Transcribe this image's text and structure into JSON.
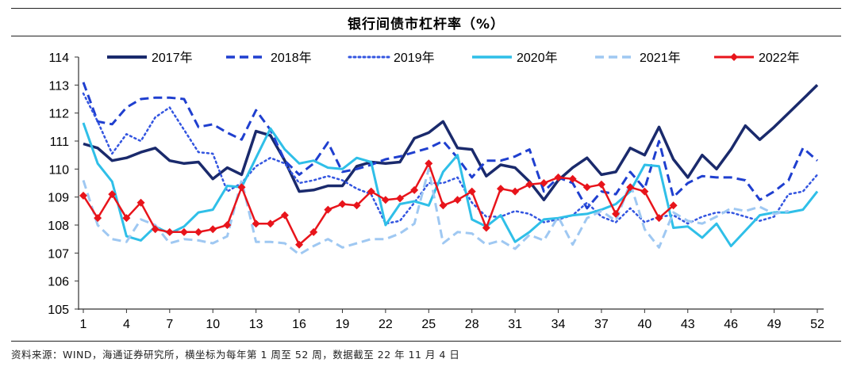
{
  "title": "银行间债市杠杆率（%）",
  "source": "资料来源：WIND，海通证券研究所，横坐标为每年第 1 周至 52 周，数据截至 22 年 11 月 4 日",
  "chart_data": {
    "type": "line",
    "title": "银行间债市杠杆率（%）",
    "xlabel": "",
    "ylabel": "",
    "xlim": [
      1,
      52
    ],
    "ylim": [
      105,
      114
    ],
    "xticks": [
      1,
      4,
      7,
      10,
      13,
      16,
      19,
      22,
      25,
      28,
      31,
      34,
      37,
      40,
      43,
      46,
      49,
      52
    ],
    "yticks": [
      105,
      106,
      107,
      108,
      109,
      110,
      111,
      112,
      113,
      114
    ],
    "legend_position": "top",
    "series": [
      {
        "name": "2017年",
        "color": "#1a2a6c",
        "style": "solid",
        "width": 3.5,
        "values": [
          110.9,
          110.75,
          110.3,
          110.4,
          110.6,
          110.75,
          110.3,
          110.2,
          110.25,
          109.65,
          110.05,
          109.8,
          111.35,
          111.2,
          110.3,
          109.2,
          109.25,
          109.4,
          109.4,
          110.1,
          110.25,
          110.2,
          110.25,
          111.1,
          111.3,
          111.7,
          110.75,
          110.7,
          109.75,
          110.15,
          110.05,
          109.55,
          108.9,
          109.6,
          110.05,
          110.4,
          109.8,
          109.9,
          110.75,
          110.5,
          111.5,
          110.35,
          109.7,
          110.5,
          110.0,
          110.7,
          111.55,
          111.05,
          111.5,
          112.0,
          112.5,
          113.0
        ]
      },
      {
        "name": "2018年",
        "color": "#1f3fcf",
        "style": "dash",
        "width": 3,
        "values": [
          113.1,
          111.7,
          111.6,
          112.2,
          112.5,
          112.55,
          112.55,
          112.5,
          111.5,
          111.6,
          111.3,
          111.05,
          112.1,
          111.4,
          110.3,
          109.8,
          110.2,
          110.95,
          109.9,
          110.0,
          110.15,
          110.35,
          110.45,
          110.6,
          110.75,
          111.0,
          110.4,
          109.7,
          110.3,
          110.3,
          110.45,
          110.7,
          109.2,
          109.7,
          109.5,
          108.6,
          109.2,
          109.1,
          109.9,
          109.3,
          111.0,
          109.0,
          109.5,
          109.75,
          109.7,
          109.7,
          109.6,
          108.9,
          109.2,
          109.6,
          110.75,
          110.3
        ]
      },
      {
        "name": "2019年",
        "color": "#3355e0",
        "style": "dot",
        "width": 2.5,
        "values": [
          112.7,
          111.7,
          110.55,
          111.25,
          111.0,
          111.85,
          112.2,
          111.4,
          110.6,
          110.55,
          109.2,
          109.5,
          110.1,
          110.4,
          110.2,
          109.5,
          109.6,
          109.75,
          109.6,
          109.3,
          109.1,
          108.05,
          108.15,
          108.8,
          109.5,
          109.5,
          109.7,
          108.8,
          108.3,
          108.3,
          108.5,
          108.4,
          108.1,
          108.2,
          108.35,
          108.8,
          108.3,
          108.1,
          108.6,
          108.1,
          108.3,
          108.35,
          108.05,
          108.3,
          108.45,
          108.45,
          108.3,
          108.15,
          108.3,
          109.1,
          109.2,
          109.8
        ]
      },
      {
        "name": "2020年",
        "color": "#2fbfe8",
        "style": "solid",
        "width": 3,
        "values": [
          111.65,
          110.2,
          109.55,
          107.6,
          107.45,
          107.95,
          107.7,
          107.95,
          108.45,
          108.55,
          109.4,
          109.35,
          110.4,
          111.45,
          110.7,
          110.2,
          110.3,
          110.05,
          110.0,
          110.4,
          110.25,
          108.0,
          108.75,
          108.85,
          108.7,
          109.9,
          110.5,
          108.2,
          107.95,
          108.35,
          107.4,
          107.75,
          108.2,
          108.25,
          108.35,
          108.4,
          108.55,
          108.75,
          109.2,
          110.15,
          110.1,
          107.9,
          107.95,
          107.55,
          108.05,
          107.25,
          107.8,
          108.35,
          108.45,
          108.45,
          108.55,
          109.2
        ]
      },
      {
        "name": "2021年",
        "color": "#9fc8f2",
        "style": "dash",
        "width": 3,
        "values": [
          109.6,
          108.0,
          107.5,
          107.4,
          108.2,
          108.0,
          107.35,
          107.5,
          107.45,
          107.35,
          107.6,
          109.6,
          107.4,
          107.4,
          107.35,
          106.95,
          107.25,
          107.5,
          107.2,
          107.35,
          107.5,
          107.5,
          107.7,
          108.05,
          110.0,
          107.35,
          107.75,
          107.7,
          107.3,
          107.45,
          107.15,
          107.65,
          107.45,
          108.3,
          107.3,
          108.25,
          108.5,
          108.15,
          109.5,
          107.85,
          107.2,
          108.45,
          108.15,
          108.05,
          108.3,
          108.6,
          108.5,
          108.65,
          108.4,
          108.5,
          null,
          null
        ]
      },
      {
        "name": "2022年",
        "color": "#e8141b",
        "style": "solid",
        "width": 2.5,
        "marker": "diamond",
        "values": [
          109.05,
          108.25,
          109.1,
          108.25,
          108.8,
          107.85,
          107.75,
          107.75,
          107.75,
          107.85,
          108.0,
          109.35,
          108.05,
          108.05,
          108.35,
          107.3,
          107.75,
          108.55,
          108.75,
          108.7,
          109.2,
          108.9,
          108.95,
          109.25,
          110.2,
          108.7,
          108.9,
          109.2,
          107.9,
          109.3,
          109.2,
          109.45,
          109.5,
          109.7,
          109.65,
          109.35,
          109.45,
          108.4,
          109.35,
          109.2,
          108.25,
          108.7,
          null,
          null,
          null,
          null,
          null,
          null,
          null,
          null,
          null,
          null
        ]
      }
    ]
  }
}
